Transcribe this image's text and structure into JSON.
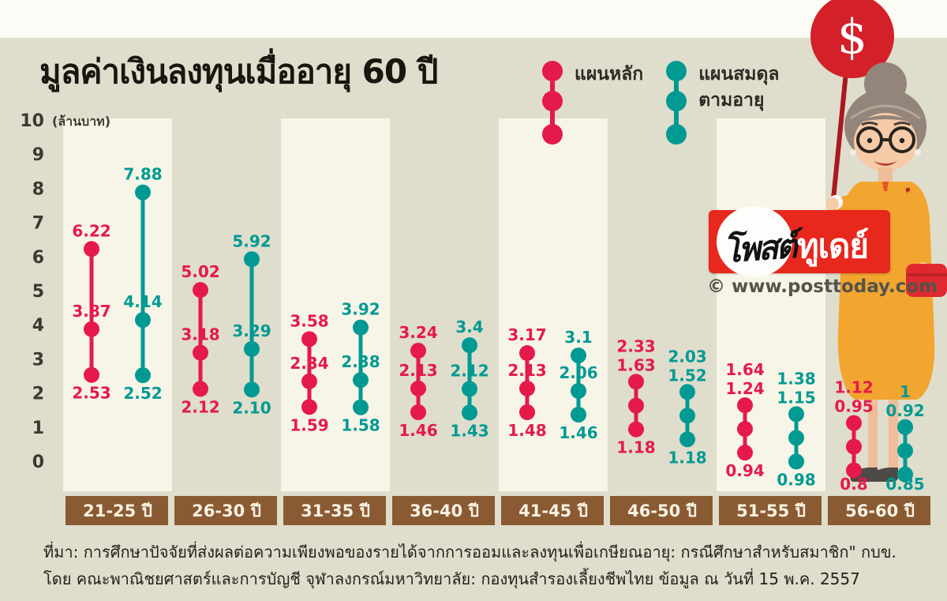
{
  "title": "มูลค่าเงินลงทุนเมื่ออายุ 60 ปี",
  "y_axis_unit": "(ล้านบาท)",
  "legend": [
    {
      "label": "แผนหลัก",
      "color": "#e6194b"
    },
    {
      "label": "แผนสมดุลตามอายุ",
      "label_line1": "แผนสมดุล",
      "label_line2": "ตามอายุ",
      "color": "#009a93"
    }
  ],
  "chart_data": {
    "type": "dot-range",
    "title": "มูลค่าเงินลงทุนเมื่ออายุ 60 ปี",
    "ylabel": "(ล้านบาท)",
    "ylim": [
      0,
      10
    ],
    "y_ticks": [
      10,
      9,
      8,
      7,
      6,
      5,
      4,
      3,
      2,
      1,
      0
    ],
    "categories": [
      "21-25 ปี",
      "26-30 ปี",
      "31-35 ปี",
      "36-40 ปี",
      "41-45 ปี",
      "46-50 ปี",
      "51-55 ปี",
      "56-60 ปี"
    ],
    "point_order": [
      "high",
      "mid",
      "low"
    ],
    "series": [
      {
        "name": "แผนหลัก",
        "color": "#e6194b",
        "values": [
          [
            6.22,
            3.87,
            2.53
          ],
          [
            5.02,
            3.18,
            2.12
          ],
          [
            3.58,
            2.34,
            1.59
          ],
          [
            3.24,
            2.13,
            1.46
          ],
          [
            3.17,
            2.13,
            1.48
          ],
          [
            2.33,
            1.63,
            1.18
          ],
          [
            1.64,
            1.24,
            0.94
          ],
          [
            1.12,
            0.95,
            0.8
          ]
        ],
        "labels": [
          [
            "6.22",
            "3.87",
            "2.53"
          ],
          [
            "5.02",
            "3.18",
            "2.12"
          ],
          [
            "3.58",
            "2.34",
            "1.59"
          ],
          [
            "3.24",
            "2.13",
            "1.46"
          ],
          [
            "3.17",
            "2.13",
            "1.48"
          ],
          [
            "2.33",
            "1.63",
            "1.18"
          ],
          [
            "1.64",
            "1.24",
            "0.94"
          ],
          [
            "1.12",
            "0.95",
            "0.8"
          ]
        ]
      },
      {
        "name": "แผนสมดุลตามอายุ",
        "color": "#009a93",
        "values": [
          [
            7.88,
            4.14,
            2.52
          ],
          [
            5.92,
            3.29,
            2.1
          ],
          [
            3.92,
            2.38,
            1.58
          ],
          [
            3.4,
            2.12,
            1.43
          ],
          [
            3.1,
            2.06,
            1.46
          ],
          [
            2.03,
            1.52,
            1.18
          ],
          [
            1.38,
            1.15,
            0.98
          ],
          [
            1,
            0.92,
            0.85
          ]
        ],
        "labels": [
          [
            "7.88",
            "4.14",
            "2.52"
          ],
          [
            "5.92",
            "3.29",
            "2.10"
          ],
          [
            "3.92",
            "2.38",
            "1.58"
          ],
          [
            "3.4",
            "2.12",
            "1.43"
          ],
          [
            "3.1",
            "2.06",
            "1.46"
          ],
          [
            "2.03",
            "1.52",
            "1.18"
          ],
          [
            "1.38",
            "1.15",
            "0.98"
          ],
          [
            "1",
            "0.92",
            "0.85"
          ]
        ]
      }
    ]
  },
  "branding": {
    "logo_script": "โพสต์",
    "logo_word": "ทูเดย์",
    "copyright": "© www.posttoday.com",
    "balloon_symbol": "$"
  },
  "footer": {
    "line1": "ที่มา: การศึกษาปัจจัยที่ส่งผลต่อความเพียงพอของรายได้จากการออมและลงทุนเพื่อเกษียณอายุ: กรณีศึกษาสำหรับสมาชิก\" กบข.",
    "line2": "โดย คณะพาณิชยศาสตร์และการบัญชี จุฬาลงกรณ์มหาวิทยาลัย: กองทุนสำรองเลี้ยงชีพไทย ข้อมูล ณ วันที่ 15 พ.ค. 2557"
  },
  "colors": {
    "background": "#dfddcc",
    "top_strip": "#fcfcf6",
    "band": "#f7f5e7",
    "category_box": "#8a5a33",
    "category_text": "#f9f2e2",
    "tick_text": "#3b3a31",
    "red_series": "#e6194b",
    "teal_series": "#009a93",
    "balloon": "#d42028",
    "balloon_stick": "#a8191f",
    "logo_red": "#e8271d",
    "dress_yellow": "#f2a52f",
    "skin": "#f6cba7",
    "hair": "#93857a",
    "bag_red": "#e0282f"
  }
}
